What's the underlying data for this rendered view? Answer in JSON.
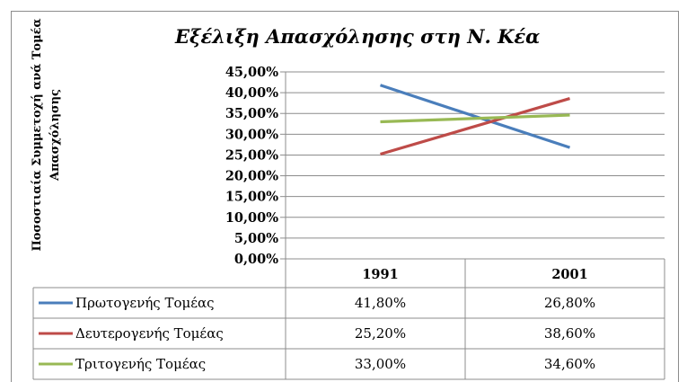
{
  "chart_data": {
    "type": "line",
    "title": "Εξέλιξη Απασχόλησης στη Ν. Κέα",
    "ylabel_line1": "Ποσοστιαία Συμμετοχή ανά Τομέα",
    "ylabel_line2": "Απασχόλησης",
    "xlabel": "",
    "categories": [
      "1991",
      "2001"
    ],
    "ylim": [
      0,
      45
    ],
    "y_ticks": [
      "0,00%",
      "5,00%",
      "10,00%",
      "15,00%",
      "20,00%",
      "25,00%",
      "30,00%",
      "35,00%",
      "40,00%",
      "45,00%"
    ],
    "y_tick_values": [
      0,
      5,
      10,
      15,
      20,
      25,
      30,
      35,
      40,
      45
    ],
    "grid": true,
    "legend": "data-table",
    "series": [
      {
        "name": "Πρωτογενής Τομέας",
        "color": "#4a7ebb",
        "values": [
          41.8,
          26.8
        ],
        "labels": [
          "41,80%",
          "26,80%"
        ]
      },
      {
        "name": "Δευτερογενής Τομέας",
        "color": "#be4b48",
        "values": [
          25.2,
          38.6
        ],
        "labels": [
          "25,20%",
          "38,60%"
        ]
      },
      {
        "name": "Τριτογενής Τομέας",
        "color": "#98b954",
        "values": [
          33.0,
          34.6
        ],
        "labels": [
          "33,00%",
          "34,60%"
        ]
      }
    ]
  }
}
